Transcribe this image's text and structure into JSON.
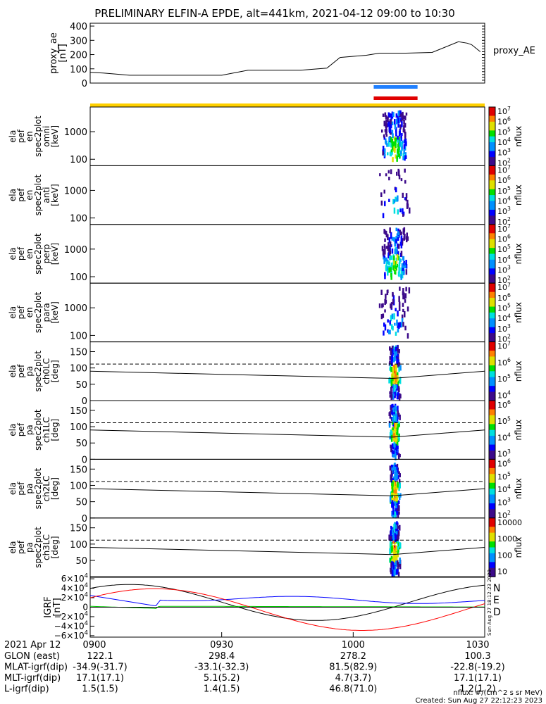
{
  "title": "PRELIMINARY ELFIN-A EPDE, alt=441km, 2021-04-12 09:00 to 10:30",
  "chart_data": [
    {
      "type": "line",
      "ylabel": "proxy_ae\n[nT]",
      "legend": "proxy_AE",
      "ylim": [
        0,
        420
      ],
      "yticks": [
        "400",
        "300",
        "200",
        "100",
        "0"
      ],
      "x_minutes": [
        0,
        3,
        9,
        30,
        36,
        48,
        54,
        57,
        63,
        66,
        72,
        78,
        84,
        86,
        87,
        89
      ],
      "values": [
        75,
        70,
        55,
        55,
        90,
        90,
        105,
        180,
        195,
        210,
        210,
        215,
        290,
        280,
        270,
        220
      ]
    },
    {
      "type": "heatmap",
      "panels": [
        {
          "ylabel": "ela\npef\nen\nspec2plot\nomni\n[keV]",
          "yticks": [
            "1000",
            "100"
          ],
          "cbar_label": "nflux",
          "cbar_ticks": [
            "10^7",
            "10^6",
            "10^5",
            "10^4",
            "10^3",
            "10^2"
          ]
        },
        {
          "ylabel": "ela\npef\nen\nspec2plot\nanti\n[keV]",
          "yticks": [
            "1000",
            "100"
          ],
          "cbar_label": "nflux",
          "cbar_ticks": [
            "10^7",
            "10^6",
            "10^5",
            "10^4",
            "10^3",
            "10^2"
          ]
        },
        {
          "ylabel": "ela\npef\nen\nspec2plot\nperp\n[keV]",
          "yticks": [
            "1000",
            "100"
          ],
          "cbar_label": "nflux",
          "cbar_ticks": [
            "10^7",
            "10^6",
            "10^5",
            "10^4",
            "10^3",
            "10^2"
          ]
        },
        {
          "ylabel": "ela\npef\nen\nspec2plot\npara\n[keV]",
          "yticks": [
            "1000",
            "100"
          ],
          "cbar_label": "nflux",
          "cbar_ticks": [
            "10^7",
            "10^6",
            "10^5",
            "10^4",
            "10^3",
            "10^2"
          ]
        },
        {
          "ylabel": "ela\npef\npa\nspec2plot\nch0LC\n[deg]",
          "yticks": [
            "150",
            "100",
            "50",
            "0"
          ],
          "cbar_label": "nflux",
          "cbar_ticks": [
            "10^7",
            "10^6",
            "10^5",
            "10^4"
          ]
        },
        {
          "ylabel": "ela\npef\npa\nspec2plot\nch1LC\n[deg]",
          "yticks": [
            "150",
            "100",
            "50",
            "0"
          ],
          "cbar_label": "nflux",
          "cbar_ticks": [
            "10^6",
            "10^5",
            "10^4",
            "10^3"
          ]
        },
        {
          "ylabel": "ela\npef\npa\nspec2plot\nch2LC\n[deg]",
          "yticks": [
            "150",
            "100",
            "50",
            "0"
          ],
          "cbar_label": "nflux",
          "cbar_ticks": [
            "10^6",
            "10^5",
            "10^4",
            "10^3",
            "10^2"
          ]
        },
        {
          "ylabel": "ela\npef\npa\nspec2plot\nch3LC\n[deg]",
          "yticks": [
            "150",
            "100",
            "50"
          ],
          "cbar_label": "nflux",
          "cbar_ticks": [
            "10000",
            "1000",
            "100",
            "10"
          ]
        }
      ],
      "event_window_minutes": [
        65,
        75
      ]
    },
    {
      "type": "line",
      "ylabel": "IGRF\n[nT]",
      "ylim": [
        -60000,
        60000
      ],
      "yticks": [
        "6×10^4",
        "4×10^4",
        "2×10^4",
        "0",
        "−2×10^4",
        "−4×10^4",
        "−6×10^4"
      ],
      "series": [
        {
          "name": "N",
          "color": "#0000ff"
        },
        {
          "name": "E",
          "color": "#00c000"
        },
        {
          "name": "D",
          "color": "#ff0000"
        }
      ]
    }
  ],
  "xaxis": {
    "ticks": [
      "0900",
      "0930",
      "1000",
      "1030"
    ],
    "date_label": "2021 Apr 12",
    "rows": [
      {
        "label": "GLON (east)",
        "values": [
          "122.1",
          "298.4",
          "278.2",
          "100.3"
        ]
      },
      {
        "label": "MLAT-igrf(dip)",
        "values": [
          "-34.9(-31.7)",
          "-33.1(-32.3)",
          "81.5(82.9)",
          "-22.8(-19.2)"
        ]
      },
      {
        "label": "MLT-igrf(dip)",
        "values": [
          "17.1(17.1)",
          "5.1(5.2)",
          "4.7(3.7)",
          "17.1(17.1)"
        ]
      },
      {
        "label": "L-igrf(dip)",
        "values": [
          "1.5(1.5)",
          "1.4(1.5)",
          "46.8(71.0)",
          "1.2(1.2)"
        ]
      }
    ]
  },
  "footer": {
    "units": "nflux: #/(cm^2 s sr MeV)",
    "created": "Created: Sun Aug 27 22:12:23 2023",
    "stamp": "Sun Aug 27 18:12:23 2023"
  }
}
